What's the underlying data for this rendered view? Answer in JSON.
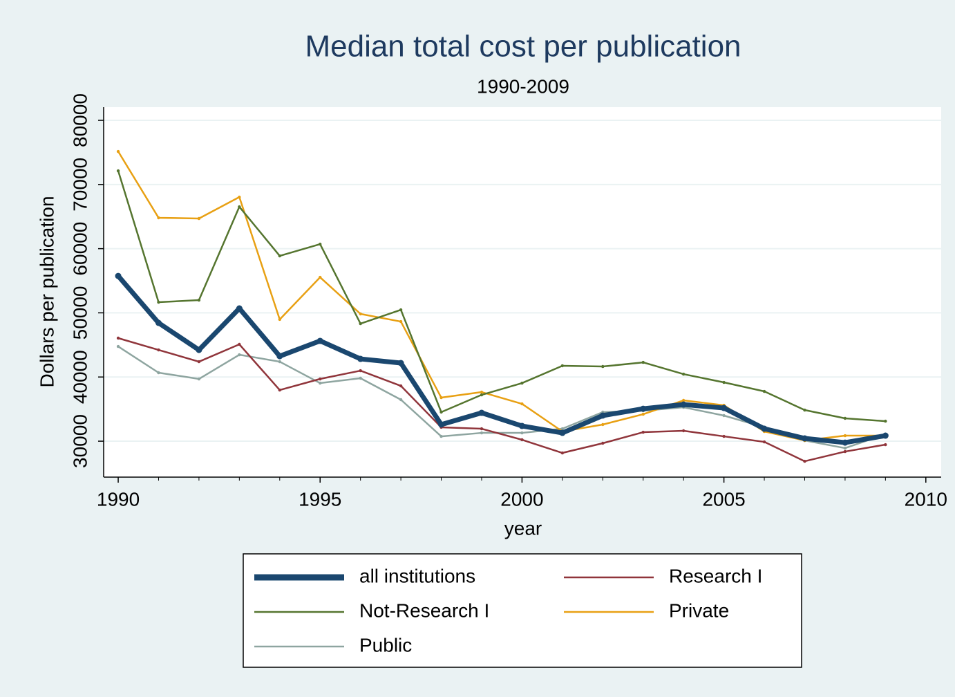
{
  "chart_data": {
    "type": "line",
    "title": "Median total cost per publication",
    "subtitle": "1990-2009",
    "x_label": "year",
    "y_label": "Dollars per publication",
    "x": [
      1990,
      1991,
      1992,
      1993,
      1994,
      1995,
      1996,
      1997,
      1998,
      1999,
      2000,
      2001,
      2002,
      2003,
      2004,
      2005,
      2006,
      2007,
      2008,
      2009
    ],
    "series": [
      {
        "name": "all institutions",
        "color": "#1a476f",
        "values": [
          55750,
          48430,
          44220,
          50690,
          43250,
          45630,
          42820,
          42180,
          32590,
          34420,
          32370,
          31290,
          33990,
          35060,
          35710,
          35170,
          31940,
          30430,
          29780,
          30860
        ]
      },
      {
        "name": "Research I",
        "color": "#90353b",
        "values": [
          46060,
          44220,
          42390,
          45090,
          37970,
          39700,
          40990,
          38620,
          32160,
          31940,
          30220,
          28170,
          29680,
          31400,
          31620,
          30750,
          29890,
          26870,
          28380,
          29460
        ]
      },
      {
        "name": "Not-Research I",
        "color": "#55752f",
        "values": [
          72130,
          51660,
          51980,
          66530,
          58880,
          60710,
          48320,
          50470,
          34530,
          37220,
          39050,
          41750,
          41640,
          42280,
          40450,
          39160,
          37760,
          34850,
          33560,
          33120
        ]
      },
      {
        "name": "Private",
        "color": "#e8a013",
        "values": [
          75150,
          64810,
          64700,
          68040,
          48970,
          55540,
          49830,
          48640,
          36790,
          37650,
          35820,
          31510,
          32590,
          34200,
          36360,
          35600,
          31510,
          30110,
          30860,
          30860
        ]
      },
      {
        "name": "Public",
        "color": "#8ea5a0",
        "values": [
          44760,
          40670,
          39700,
          43470,
          42390,
          39050,
          39810,
          36470,
          30750,
          31290,
          31290,
          31940,
          34530,
          34740,
          35280,
          33990,
          32160,
          30110,
          28920,
          31080
        ]
      }
    ],
    "xlim": [
      1989.64,
      2010.38
    ],
    "xticks": [
      1990,
      1995,
      2000,
      2005,
      2010
    ],
    "xminorticks": [
      1991,
      1992,
      1993,
      1994,
      1996,
      1997,
      1998,
      1999,
      2001,
      2002,
      2003,
      2004,
      2006,
      2007,
      2008,
      2009
    ],
    "ylim": [
      24400,
      82050
    ],
    "yticks": [
      30000,
      40000,
      50000,
      60000,
      70000,
      80000
    ],
    "grid": true,
    "legend": "bottom"
  }
}
